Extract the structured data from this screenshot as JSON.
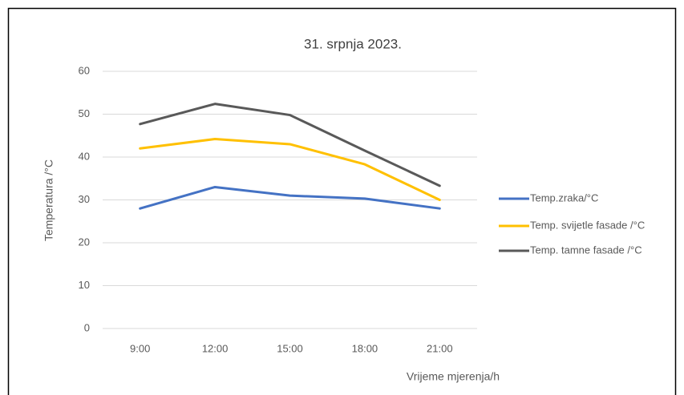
{
  "chart_data": {
    "type": "line",
    "title": "31. srpnja 2023.",
    "x_label": "Vrijeme mjerenja/h",
    "y_label": "Temperatura /°C",
    "categories": [
      "9:00",
      "12:00",
      "15:00",
      "18:00",
      "21:00"
    ],
    "series": [
      {
        "name": "Temp.zraka/°C",
        "color": "#4472c4",
        "values": [
          28,
          33,
          31,
          30.3,
          28
        ]
      },
      {
        "name": "Temp. svijetle fasade /°C",
        "color": "#ffc000",
        "values": [
          42,
          44.2,
          43,
          38.3,
          30
        ]
      },
      {
        "name": "Temp. tamne fasade /°C",
        "color": "#595959",
        "values": [
          47.7,
          52.4,
          49.8,
          41.5,
          33.3
        ]
      }
    ],
    "ylim": [
      0,
      60
    ],
    "yticks": [
      0,
      10,
      20,
      30,
      40,
      50,
      60
    ],
    "grid": true,
    "legend": "right"
  }
}
